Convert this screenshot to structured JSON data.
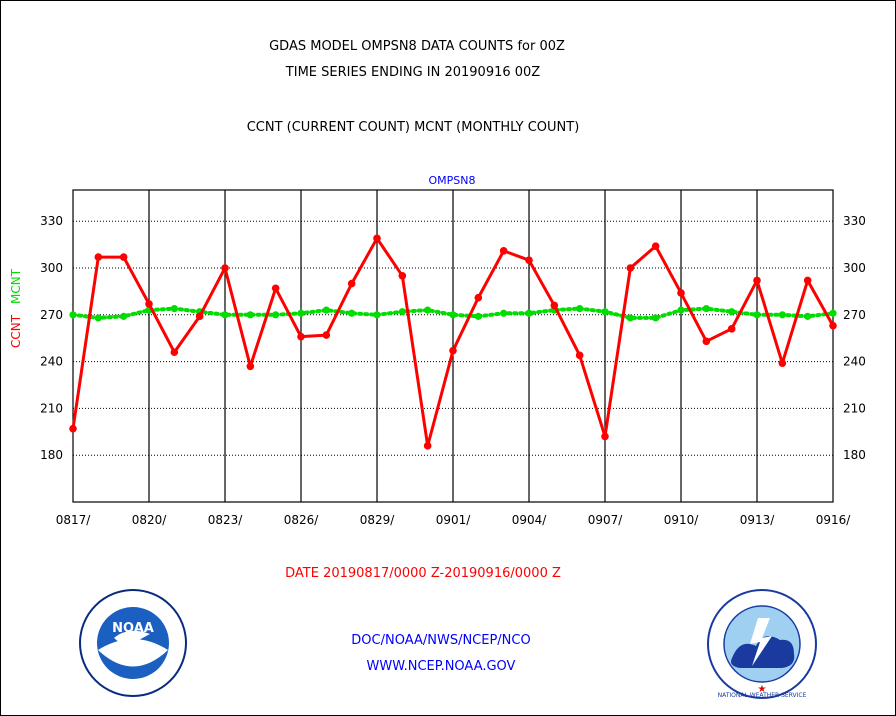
{
  "header": {
    "title_line1": "GDAS MODEL OMPSN8 DATA COUNTS for 00Z",
    "title_line2": "TIME SERIES ENDING IN 20190916 00Z",
    "subtitle": "CCNT (CURRENT COUNT) MCNT (MONTHLY COUNT)"
  },
  "footer": {
    "date_range": "DATE 20190817/0000 Z-20190916/0000 Z",
    "org_line": "DOC/NOAA/NWS/NCEP/NCO",
    "url": "WWW.NCEP.NOAA.GOV"
  },
  "logos": {
    "noaa_label": "NOAA",
    "nws_ring_text": "NATIONAL WEATHER SERVICE"
  },
  "colors": {
    "ccnt": "#ff0000",
    "mcnt": "#00dd00",
    "plot_title": "#0000ff",
    "footer_text": "#0000ff",
    "date_text": "#ff0000",
    "grid": "#000000"
  },
  "chart_data": {
    "type": "line",
    "title": "OMPSN8",
    "ylabel_ccnt": "CCNT",
    "ylabel_mcnt": "MCNT",
    "ylim": [
      150,
      350
    ],
    "yticks": [
      180,
      210,
      240,
      270,
      300,
      330
    ],
    "xticks": [
      "0817/",
      "0820/",
      "0823/",
      "0826/",
      "0829/",
      "0901/",
      "0904/",
      "0907/",
      "0910/",
      "0913/",
      "0916/"
    ],
    "grid": true,
    "x": [
      "0817",
      "0818",
      "0819",
      "0820",
      "0821",
      "0822",
      "0823",
      "0824",
      "0825",
      "0826",
      "0827",
      "0828",
      "0829",
      "0830",
      "0831",
      "0901",
      "0902",
      "0903",
      "0904",
      "0905",
      "0906",
      "0907",
      "0908",
      "0909",
      "0910",
      "0911",
      "0912",
      "0913",
      "0914",
      "0915",
      "0916"
    ],
    "series": [
      {
        "name": "CCNT",
        "values": [
          197,
          307,
          307,
          277,
          246,
          269,
          300,
          237,
          287,
          256,
          257,
          290,
          319,
          295,
          186,
          247,
          281,
          311,
          305,
          276,
          244,
          192,
          300,
          314,
          284,
          253,
          261,
          292,
          239,
          292,
          263
        ]
      },
      {
        "name": "MCNT",
        "values": [
          270,
          268,
          269,
          273,
          274,
          272,
          270,
          270,
          270,
          271,
          273,
          271,
          270,
          272,
          273,
          270,
          269,
          271,
          271,
          273,
          274,
          272,
          268,
          268,
          273,
          274,
          272,
          270,
          270,
          269,
          271
        ]
      }
    ]
  }
}
